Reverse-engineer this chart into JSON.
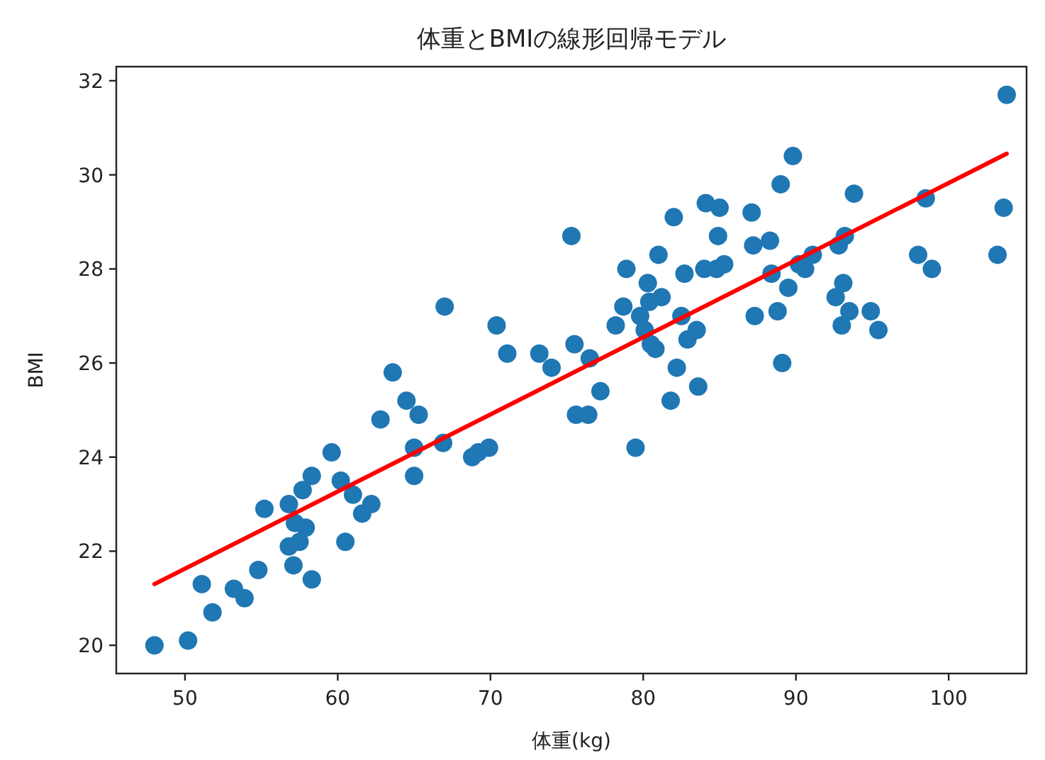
{
  "chart_data": {
    "type": "scatter",
    "title": "体重とBMIの線形回帰モデル",
    "xlabel": "体重(kg)",
    "ylabel": "BMI",
    "xlim": [
      45.5,
      105.1
    ],
    "ylim": [
      19.4,
      32.3
    ],
    "xticks": [
      50,
      60,
      70,
      80,
      90,
      100
    ],
    "yticks": [
      20,
      22,
      24,
      26,
      28,
      30,
      32
    ],
    "series": [
      {
        "type": "scatter",
        "marker": "circle",
        "color": "#1f77b4",
        "x": [
          48.0,
          50.2,
          51.1,
          51.8,
          53.2,
          53.9,
          54.8,
          55.2,
          56.8,
          56.8,
          57.1,
          57.2,
          57.5,
          57.7,
          57.9,
          58.3,
          58.3,
          59.6,
          60.2,
          60.5,
          61.0,
          61.6,
          62.2,
          62.8,
          63.6,
          64.5,
          65.0,
          65.0,
          65.3,
          66.9,
          67.0,
          68.8,
          69.2,
          69.9,
          70.4,
          71.1,
          73.2,
          74.0,
          75.3,
          75.5,
          75.6,
          76.4,
          76.5,
          77.2,
          78.2,
          78.7,
          78.9,
          79.5,
          79.8,
          80.1,
          80.3,
          80.4,
          80.5,
          80.8,
          81.0,
          81.2,
          81.8,
          82.0,
          82.2,
          82.5,
          82.7,
          82.9,
          83.5,
          83.6,
          84.0,
          84.1,
          84.8,
          84.9,
          85.0,
          85.3,
          87.1,
          87.2,
          87.3,
          88.3,
          88.4,
          88.8,
          89.0,
          89.1,
          89.5,
          89.8,
          90.2,
          90.6,
          91.1,
          92.6,
          92.8,
          93.0,
          93.1,
          93.2,
          93.8,
          93.5,
          94.9,
          95.4,
          98.0,
          98.5,
          98.9,
          103.2,
          103.6,
          103.8
        ],
        "values": [
          20.0,
          20.1,
          21.3,
          20.7,
          21.2,
          21.0,
          21.6,
          22.9,
          23.0,
          22.1,
          21.7,
          22.6,
          22.2,
          23.3,
          22.5,
          23.6,
          21.4,
          24.1,
          23.5,
          22.2,
          23.2,
          22.8,
          23.0,
          24.8,
          25.8,
          25.2,
          24.2,
          23.6,
          24.9,
          24.3,
          27.2,
          24.0,
          24.1,
          24.2,
          26.8,
          26.2,
          26.2,
          25.9,
          28.7,
          26.4,
          24.9,
          24.9,
          26.1,
          25.4,
          26.8,
          27.2,
          28.0,
          24.2,
          27.0,
          26.7,
          27.7,
          27.3,
          26.4,
          26.3,
          28.3,
          27.4,
          25.2,
          29.1,
          25.9,
          27.0,
          27.9,
          26.5,
          26.7,
          25.5,
          28.0,
          29.4,
          28.0,
          28.7,
          29.3,
          28.1,
          29.2,
          28.5,
          27.0,
          28.6,
          27.9,
          27.1,
          29.8,
          26.0,
          27.6,
          30.4,
          28.1,
          28.0,
          28.3,
          27.4,
          28.5,
          26.8,
          27.7,
          28.7,
          29.6,
          27.1,
          27.1,
          26.7,
          28.3,
          29.5,
          28.0,
          28.3,
          29.3,
          31.7
        ]
      },
      {
        "type": "line",
        "color": "#ff0000",
        "x": [
          48.0,
          103.8
        ],
        "values": [
          21.3,
          30.45
        ]
      }
    ]
  }
}
